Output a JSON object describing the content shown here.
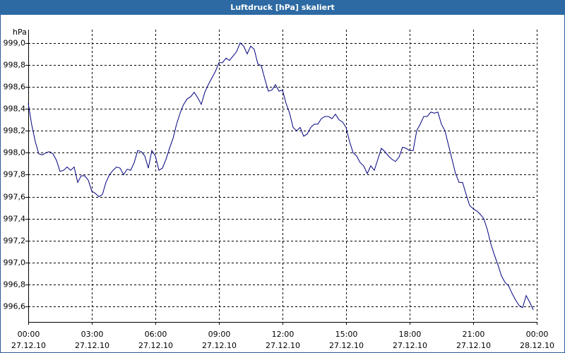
{
  "chart_data": {
    "type": "line",
    "title": "Luftdruck [hPa] skaliert",
    "y_label": "hPa",
    "color": "#000080",
    "grid": true,
    "xlim": [
      0,
      1440
    ],
    "ylim": [
      996.46,
      999.12
    ],
    "xticks": [
      {
        "value": 0,
        "label": "00:00"
      },
      {
        "value": 180,
        "label": "03:00"
      },
      {
        "value": 360,
        "label": "06:00"
      },
      {
        "value": 540,
        "label": "09:00"
      },
      {
        "value": 720,
        "label": "12:00"
      },
      {
        "value": 900,
        "label": "15:00"
      },
      {
        "value": 1080,
        "label": "18:00"
      },
      {
        "value": 1260,
        "label": "21:00"
      },
      {
        "value": 1440,
        "label": "00:00"
      }
    ],
    "xtick_dates": [
      "27.12.10",
      "27.12.10",
      "27.12.10",
      "27.12.10",
      "27.12.10",
      "27.12.10",
      "27.12.10",
      "27.12.10",
      "28.12.10"
    ],
    "yticks": [
      {
        "value": 996.6,
        "label": "996,6"
      },
      {
        "value": 996.8,
        "label": "996,8"
      },
      {
        "value": 997.0,
        "label": "997,0"
      },
      {
        "value": 997.2,
        "label": "997,2"
      },
      {
        "value": 997.4,
        "label": "997,4"
      },
      {
        "value": 997.6,
        "label": "997,6"
      },
      {
        "value": 997.8,
        "label": "997,8"
      },
      {
        "value": 998.0,
        "label": "998,0"
      },
      {
        "value": 998.2,
        "label": "998,2"
      },
      {
        "value": 998.4,
        "label": "998,4"
      },
      {
        "value": 998.6,
        "label": "998,6"
      },
      {
        "value": 998.8,
        "label": "998,8"
      },
      {
        "value": 999.0,
        "label": "999,0"
      }
    ],
    "x": [
      0,
      10,
      20,
      30,
      40,
      50,
      60,
      70,
      80,
      90,
      100,
      110,
      120,
      130,
      140,
      150,
      160,
      170,
      180,
      190,
      200,
      210,
      220,
      230,
      240,
      250,
      260,
      270,
      280,
      290,
      300,
      310,
      320,
      330,
      340,
      350,
      360,
      370,
      380,
      390,
      400,
      410,
      420,
      430,
      440,
      450,
      460,
      470,
      480,
      490,
      500,
      510,
      520,
      530,
      540,
      550,
      560,
      570,
      580,
      590,
      600,
      610,
      620,
      630,
      640,
      650,
      660,
      670,
      680,
      690,
      700,
      710,
      720,
      730,
      740,
      750,
      760,
      770,
      780,
      790,
      800,
      810,
      820,
      830,
      840,
      850,
      860,
      870,
      880,
      890,
      900,
      910,
      920,
      930,
      940,
      950,
      960,
      970,
      980,
      990,
      1000,
      1010,
      1020,
      1030,
      1040,
      1050,
      1060,
      1070,
      1080,
      1090,
      1100,
      1110,
      1120,
      1130,
      1140,
      1150,
      1160,
      1170,
      1180,
      1190,
      1200,
      1210,
      1220,
      1230,
      1240,
      1250,
      1260,
      1270,
      1280,
      1290,
      1300,
      1310,
      1320,
      1330,
      1340,
      1350,
      1360,
      1370,
      1380,
      1390,
      1400,
      1410,
      1420,
      1430
    ],
    "values": [
      998.45,
      998.25,
      998.1,
      997.99,
      997.98,
      998.0,
      998.01,
      997.99,
      997.93,
      997.83,
      997.84,
      997.87,
      997.84,
      997.87,
      997.73,
      997.79,
      997.79,
      997.75,
      997.65,
      997.63,
      997.6,
      997.62,
      997.73,
      997.8,
      997.84,
      997.87,
      997.86,
      997.8,
      997.85,
      997.84,
      997.91,
      998.02,
      998.01,
      997.97,
      997.86,
      998.02,
      997.97,
      997.84,
      997.86,
      997.94,
      998.04,
      998.13,
      998.26,
      998.36,
      998.44,
      998.49,
      998.51,
      998.55,
      998.5,
      998.44,
      998.55,
      998.62,
      998.68,
      998.74,
      998.82,
      998.82,
      998.86,
      998.84,
      998.88,
      998.92,
      999.0,
      998.97,
      998.9,
      998.97,
      998.94,
      998.81,
      998.79,
      998.67,
      998.56,
      998.57,
      998.62,
      998.56,
      998.57,
      998.45,
      998.36,
      998.23,
      998.2,
      998.23,
      998.15,
      998.17,
      998.23,
      998.26,
      998.26,
      998.31,
      998.33,
      998.33,
      998.31,
      998.35,
      998.3,
      998.28,
      998.23,
      998.1,
      998.0,
      997.97,
      997.91,
      997.88,
      997.81,
      997.88,
      997.84,
      997.94,
      998.04,
      998.01,
      997.97,
      997.94,
      997.92,
      997.96,
      998.05,
      998.04,
      998.02,
      998.02,
      998.2,
      998.26,
      998.33,
      998.33,
      998.37,
      998.36,
      998.37,
      998.26,
      998.2,
      998.07,
      997.94,
      997.81,
      997.73,
      997.73,
      997.62,
      997.52,
      997.49,
      997.47,
      997.44,
      997.4,
      997.3,
      997.17,
      997.07,
      996.98,
      996.88,
      996.82,
      996.79,
      996.72,
      996.66,
      996.61,
      996.59,
      996.7,
      996.64,
      996.57
    ]
  }
}
